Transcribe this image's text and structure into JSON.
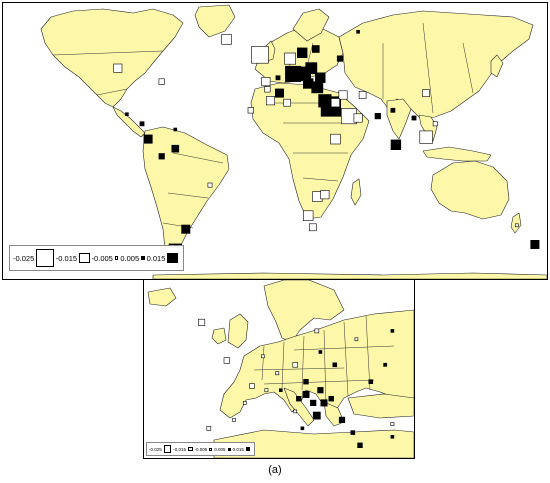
{
  "caption": "(a)",
  "legend": {
    "items": [
      {
        "label": "-0.025",
        "sign": "neg",
        "magnitude": 0.025
      },
      {
        "label": "-0.015",
        "sign": "neg",
        "magnitude": 0.015
      },
      {
        "label": "-0.005",
        "sign": "neg",
        "magnitude": 0.005
      },
      {
        "label": "0.005",
        "sign": "pos",
        "magnitude": 0.005
      },
      {
        "label": "0.015",
        "sign": "pos",
        "magnitude": 0.015
      }
    ]
  },
  "europe_legend": {
    "items": [
      {
        "label": "-0.025",
        "sign": "neg",
        "magnitude": 0.025
      },
      {
        "label": "-0.015",
        "sign": "neg",
        "magnitude": 0.015
      },
      {
        "label": "-0.005",
        "sign": "neg",
        "magnitude": 0.005
      },
      {
        "label": "0.005",
        "sign": "pos",
        "magnitude": 0.005
      },
      {
        "label": "0.015",
        "sign": "pos",
        "magnitude": 0.015
      }
    ]
  },
  "colors": {
    "land": "#fdf7a9",
    "positive": "#000000",
    "negative": "#ffffff",
    "border": "#222222"
  },
  "world_markers": [
    {
      "lon": -104,
      "lat": 50,
      "v": -0.012
    },
    {
      "lon": -75,
      "lat": 43,
      "v": -0.008
    },
    {
      "lon": -98,
      "lat": 26,
      "v": 0.002
    },
    {
      "lon": -88,
      "lat": 21,
      "v": 0.006
    },
    {
      "lon": -84,
      "lat": 13,
      "v": 0.012
    },
    {
      "lon": -66,
      "lat": 8,
      "v": 0.01
    },
    {
      "lon": -75,
      "lat": 4,
      "v": 0.008
    },
    {
      "lon": -43,
      "lat": -11,
      "v": -0.006
    },
    {
      "lon": -59,
      "lat": -34,
      "v": 0.012
    },
    {
      "lon": -66,
      "lat": -45,
      "v": 0.018
    },
    {
      "lon": -66,
      "lat": 18,
      "v": 0.004
    },
    {
      "lon": -32,
      "lat": 65,
      "v": -0.014
    },
    {
      "lon": -10,
      "lat": 57,
      "v": -0.024
    },
    {
      "lon": -6,
      "lat": 43,
      "v": -0.012
    },
    {
      "lon": 12,
      "lat": 47,
      "v": 0.022
    },
    {
      "lon": 19,
      "lat": 47,
      "v": 0.02
    },
    {
      "lon": 24,
      "lat": 50,
      "v": 0.016
    },
    {
      "lon": 30,
      "lat": 45,
      "v": 0.014
    },
    {
      "lon": 10,
      "lat": 55,
      "v": -0.016
    },
    {
      "lon": 18,
      "lat": 58,
      "v": 0.014
    },
    {
      "lon": 27,
      "lat": 60,
      "v": 0.01
    },
    {
      "lon": 28,
      "lat": 40,
      "v": 0.016
    },
    {
      "lon": 37,
      "lat": 30,
      "v": 0.028
    },
    {
      "lon": 33,
      "lat": 33,
      "v": 0.018
    },
    {
      "lon": 43,
      "lat": 55,
      "v": 0.008
    },
    {
      "lon": 45,
      "lat": 36,
      "v": -0.012
    },
    {
      "lon": 49,
      "lat": 25,
      "v": -0.022
    },
    {
      "lon": 55,
      "lat": 24,
      "v": -0.012
    },
    {
      "lon": 58,
      "lat": 36,
      "v": -0.01
    },
    {
      "lon": 78,
      "lat": 28,
      "v": 0.006
    },
    {
      "lon": 68,
      "lat": 25,
      "v": 0.008
    },
    {
      "lon": 80,
      "lat": 10,
      "v": 0.014
    },
    {
      "lon": 92,
      "lat": 24,
      "v": 0.006
    },
    {
      "lon": 100,
      "lat": 14,
      "v": -0.018
    },
    {
      "lon": 106,
      "lat": 21,
      "v": -0.006
    },
    {
      "lon": 100,
      "lat": 37,
      "v": -0.01
    },
    {
      "lon": 55,
      "lat": 69,
      "v": 0.004
    },
    {
      "lon": 40,
      "lat": 13,
      "v": -0.014
    },
    {
      "lon": 40,
      "lat": 32,
      "v": -0.012
    },
    {
      "lon": -3,
      "lat": 33,
      "v": -0.012
    },
    {
      "lon": 8,
      "lat": 32,
      "v": -0.01
    },
    {
      "lon": 3,
      "lat": 37,
      "v": 0.012
    },
    {
      "lon": -16,
      "lat": 28,
      "v": -0.008
    },
    {
      "lon": 28,
      "lat": -17,
      "v": -0.014
    },
    {
      "lon": 33,
      "lat": -16,
      "v": -0.012
    },
    {
      "lon": 22,
      "lat": -27,
      "v": -0.014
    },
    {
      "lon": 25,
      "lat": -33,
      "v": -0.01
    },
    {
      "lon": 172,
      "lat": -42,
      "v": 0.012
    },
    {
      "lon": 160,
      "lat": -32,
      "v": -0.004
    },
    {
      "lon": -5,
      "lat": 39,
      "v": -0.008
    },
    {
      "lon": 2,
      "lat": 45,
      "v": 0.006
    },
    {
      "lon": 22,
      "lat": 42,
      "v": 0.014
    }
  ],
  "europe_markers": [
    {
      "lon": 24,
      "lat": 55,
      "v": 0.006
    },
    {
      "lon": 28,
      "lat": 52,
      "v": 0.01
    },
    {
      "lon": 17,
      "lat": 52,
      "v": -0.012
    },
    {
      "lon": 20,
      "lat": 48,
      "v": 0.012
    },
    {
      "lon": 24,
      "lat": 46,
      "v": 0.014
    },
    {
      "lon": 20,
      "lat": 45,
      "v": 0.016
    },
    {
      "lon": 22,
      "lat": 43,
      "v": 0.014
    },
    {
      "lon": 25,
      "lat": 43,
      "v": 0.016
    },
    {
      "lon": 27,
      "lat": 44,
      "v": 0.012
    },
    {
      "lon": 18,
      "lat": 44,
      "v": 0.012
    },
    {
      "lon": 23,
      "lat": 40,
      "v": 0.018
    },
    {
      "lon": 30,
      "lat": 39,
      "v": 0.014
    },
    {
      "lon": 13,
      "lat": 46,
      "v": 0.006
    },
    {
      "lon": 9,
      "lat": 46,
      "v": -0.008
    },
    {
      "lon": 5,
      "lat": 47,
      "v": -0.012
    },
    {
      "lon": 12,
      "lat": 50,
      "v": -0.008
    },
    {
      "lon": 8,
      "lat": 54,
      "v": -0.006
    },
    {
      "lon": -2,
      "lat": 53,
      "v": -0.014
    },
    {
      "lon": -9,
      "lat": 62,
      "v": -0.016
    },
    {
      "lon": 38,
      "lat": 48,
      "v": 0.01
    },
    {
      "lon": 42,
      "lat": 52,
      "v": 0.008
    },
    {
      "lon": 33,
      "lat": 36,
      "v": 0.01
    },
    {
      "lon": 35,
      "lat": 33,
      "v": 0.012
    },
    {
      "lon": 19,
      "lat": 37,
      "v": 0.006
    },
    {
      "lon": 0,
      "lat": 39,
      "v": -0.006
    },
    {
      "lon": -7,
      "lat": 37,
      "v": -0.01
    },
    {
      "lon": 3,
      "lat": 43,
      "v": -0.006
    },
    {
      "lon": 23,
      "lat": 60,
      "v": -0.01
    },
    {
      "lon": 34,
      "lat": 58,
      "v": -0.004
    },
    {
      "lon": 44,
      "lat": 60,
      "v": 0.004
    },
    {
      "lon": 17,
      "lat": 41,
      "v": -0.006
    },
    {
      "lon": -10,
      "lat": 33,
      "v": -0.006
    },
    {
      "lon": 44,
      "lat": 35,
      "v": 0.006
    },
    {
      "lon": 44,
      "lat": 38,
      "v": -0.008
    }
  ]
}
